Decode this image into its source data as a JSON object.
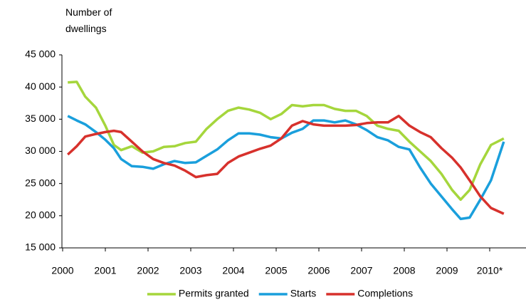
{
  "chart_data": {
    "type": "line",
    "y_label": "Number of dwellings",
    "x": [
      2000.12,
      2000.33,
      2000.53,
      2000.78,
      2001.0,
      2001.2,
      2001.37,
      2001.62,
      2001.87,
      2002.12,
      2002.37,
      2002.62,
      2002.87,
      2003.12,
      2003.37,
      2003.62,
      2003.87,
      2004.12,
      2004.37,
      2004.62,
      2004.87,
      2005.12,
      2005.37,
      2005.62,
      2005.87,
      2006.12,
      2006.37,
      2006.62,
      2006.87,
      2007.12,
      2007.37,
      2007.62,
      2007.87,
      2008.12,
      2008.37,
      2008.62,
      2008.87,
      2009.12,
      2009.32,
      2009.53,
      2009.78,
      2010.03,
      2010.33
    ],
    "series": [
      {
        "name": "Permits granted",
        "color": "#a5d63c",
        "values": [
          40700,
          40800,
          38500,
          36800,
          34000,
          31000,
          30200,
          30800,
          29800,
          30000,
          30700,
          30800,
          31300,
          31500,
          33500,
          35000,
          36300,
          36800,
          36500,
          36000,
          35000,
          35800,
          37200,
          37000,
          37200,
          37200,
          36600,
          36300,
          36300,
          35500,
          34000,
          33500,
          33200,
          31500,
          30000,
          28500,
          26500,
          24000,
          22500,
          24000,
          28000,
          31000,
          32000
        ]
      },
      {
        "name": "Starts",
        "color": "#1a9fdc",
        "values": [
          35500,
          34800,
          34200,
          33000,
          31800,
          30500,
          28800,
          27700,
          27600,
          27300,
          28000,
          28500,
          28200,
          28300,
          29300,
          30300,
          31700,
          32800,
          32800,
          32600,
          32200,
          32000,
          32900,
          33500,
          34800,
          34800,
          34500,
          34800,
          34200,
          33300,
          32200,
          31700,
          30700,
          30300,
          27500,
          25000,
          23000,
          21000,
          19500,
          19700,
          22500,
          25500,
          31500
        ]
      },
      {
        "name": "Completions",
        "color": "#d7312c",
        "values": [
          29500,
          30800,
          32300,
          32700,
          33000,
          33200,
          33000,
          31500,
          30000,
          28800,
          28200,
          27800,
          27000,
          26000,
          26300,
          26500,
          28200,
          29200,
          29800,
          30400,
          30900,
          32000,
          34000,
          34700,
          34200,
          34000,
          34000,
          34000,
          34100,
          34400,
          34500,
          34500,
          35500,
          34000,
          33000,
          32200,
          30500,
          29000,
          27500,
          25500,
          23000,
          21200,
          20300
        ]
      }
    ],
    "xlim": [
      2000,
      2010.85
    ],
    "xticks": [
      2000,
      2001,
      2002,
      2003,
      2004,
      2005,
      2006,
      2007,
      2008,
      2009,
      {
        "value": 2010,
        "label": "2010*"
      }
    ],
    "ylim": [
      15000,
      45000
    ],
    "yticks": [
      {
        "value": 15000,
        "label": "15 000"
      },
      {
        "value": 20000,
        "label": "20 000"
      },
      {
        "value": 25000,
        "label": "25 000"
      },
      {
        "value": 30000,
        "label": "30 000"
      },
      {
        "value": 35000,
        "label": "35 000"
      },
      {
        "value": 40000,
        "label": "40 000"
      },
      {
        "value": 45000,
        "label": "45 000"
      }
    ],
    "grid": false,
    "legend": "bottom"
  }
}
